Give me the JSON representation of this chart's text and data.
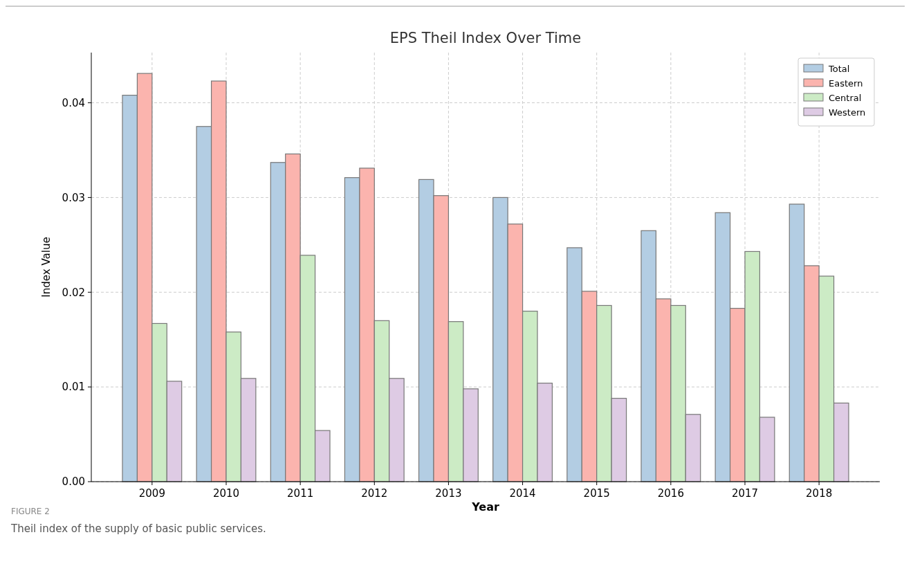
{
  "chart_data": {
    "type": "bar",
    "title": "EPS Theil Index Over Time",
    "xlabel": "Year",
    "ylabel": "Index Value",
    "categories": [
      "2009",
      "2010",
      "2011",
      "2012",
      "2013",
      "2014",
      "2015",
      "2016",
      "2017",
      "2018"
    ],
    "series": [
      {
        "name": "Total",
        "color": "#b3cde3",
        "values": [
          0.0408,
          0.0375,
          0.0337,
          0.0321,
          0.0319,
          0.03,
          0.0247,
          0.0265,
          0.0284,
          0.0293
        ]
      },
      {
        "name": "Eastern",
        "color": "#fbb4ae",
        "values": [
          0.0431,
          0.0423,
          0.0346,
          0.0331,
          0.0302,
          0.0272,
          0.0201,
          0.0193,
          0.0183,
          0.0228
        ]
      },
      {
        "name": "Central",
        "color": "#ccebc5",
        "values": [
          0.0167,
          0.0158,
          0.0239,
          0.017,
          0.0169,
          0.018,
          0.0186,
          0.0186,
          0.0243,
          0.0217
        ]
      },
      {
        "name": "Western",
        "color": "#decbe4",
        "values": [
          0.0106,
          0.0109,
          0.0054,
          0.0109,
          0.0098,
          0.0104,
          0.0088,
          0.0071,
          0.0068,
          0.0083
        ]
      }
    ],
    "ylim": [
      0,
      0.0453
    ],
    "yticks": [
      {
        "value": 0,
        "label": "0.00"
      },
      {
        "value": 0.01,
        "label": "0.01"
      },
      {
        "value": 0.02,
        "label": "0.02"
      },
      {
        "value": 0.03,
        "label": "0.03"
      },
      {
        "value": 0.04,
        "label": "0.04"
      }
    ],
    "grid": true,
    "legend": "top right",
    "annotations": [
      "FIGURE 2",
      "Theil index of the supply of basic public services."
    ]
  }
}
